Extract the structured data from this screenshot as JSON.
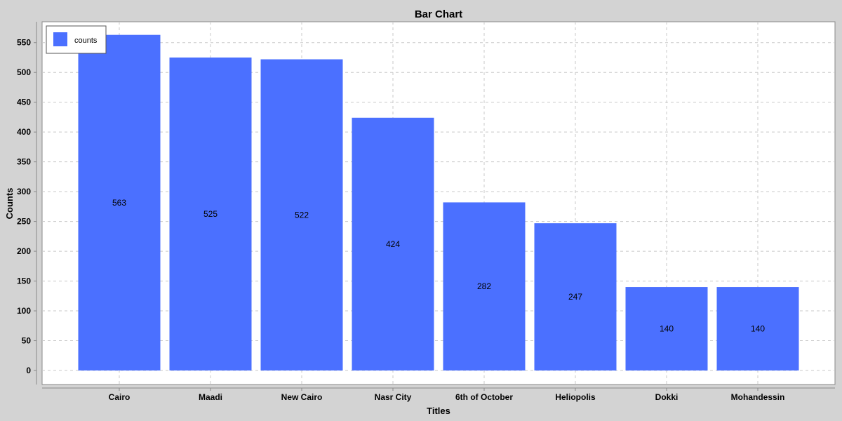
{
  "chart_data": {
    "type": "bar",
    "title": "Bar Chart",
    "xlabel": "Titles",
    "ylabel": "Counts",
    "categories": [
      "Cairo",
      "Maadi",
      "New Cairo",
      "Nasr City",
      "6th of October",
      "Heliopolis",
      "Dokki",
      "Mohandessin"
    ],
    "series": [
      {
        "name": "counts",
        "values": [
          563,
          525,
          522,
          424,
          282,
          247,
          140,
          140
        ]
      }
    ],
    "ylim": [
      0,
      585
    ],
    "yticks": [
      0,
      50,
      100,
      150,
      200,
      250,
      300,
      350,
      400,
      450,
      500,
      550
    ],
    "grid": true,
    "legend_position": "top-left",
    "colors": {
      "bar": "#4b70ff",
      "background": "#d3d3d3",
      "plot_background": "#ffffff",
      "grid": "#c8c8c8"
    }
  }
}
